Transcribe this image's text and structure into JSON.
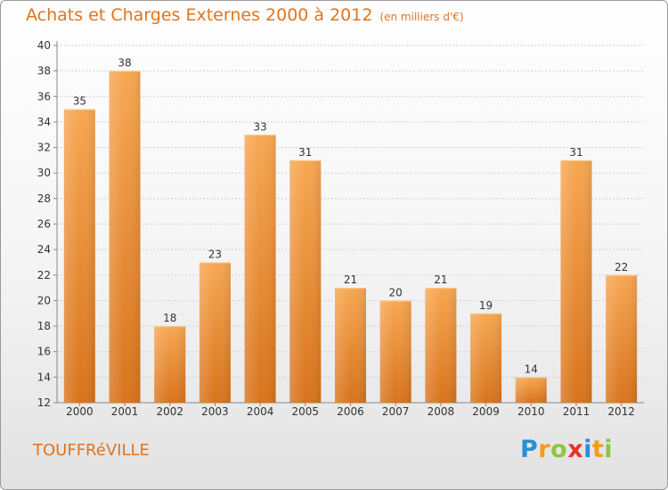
{
  "header": {
    "title": "Achats et Charges Externes 2000 à 2012",
    "subtitle": "(en milliers d'€)"
  },
  "footer": {
    "commune": "TOUFFRéVILLE",
    "brand": "Proxiti",
    "brand_letters": [
      {
        "char": "P",
        "color": "#2a8fd4"
      },
      {
        "char": "r",
        "color": "#f39b1c"
      },
      {
        "char": "o",
        "color": "#8cc63f"
      },
      {
        "char": "x",
        "color": "#e5322d"
      },
      {
        "char": "i",
        "color": "#2a8fd4"
      },
      {
        "char": "t",
        "color": "#f39b1c"
      },
      {
        "char": "i",
        "color": "#8cc63f"
      }
    ]
  },
  "chart_data": {
    "type": "bar",
    "title": "Achats et Charges Externes 2000 à 2012",
    "subtitle": "(en milliers d'€)",
    "categories": [
      "2000",
      "2001",
      "2002",
      "2003",
      "2004",
      "2005",
      "2006",
      "2007",
      "2008",
      "2009",
      "2010",
      "2011",
      "2012"
    ],
    "values": [
      35,
      38,
      18,
      23,
      33,
      31,
      21,
      20,
      21,
      19,
      14,
      31,
      22
    ],
    "ylim": [
      12,
      40
    ],
    "yticks": [
      12,
      14,
      16,
      18,
      20,
      22,
      24,
      26,
      28,
      30,
      32,
      34,
      36,
      38,
      40
    ],
    "grid": true,
    "bar_color_top": "#f7a752",
    "bar_color_bottom": "#d8741c",
    "text_color": "#e0741e"
  }
}
